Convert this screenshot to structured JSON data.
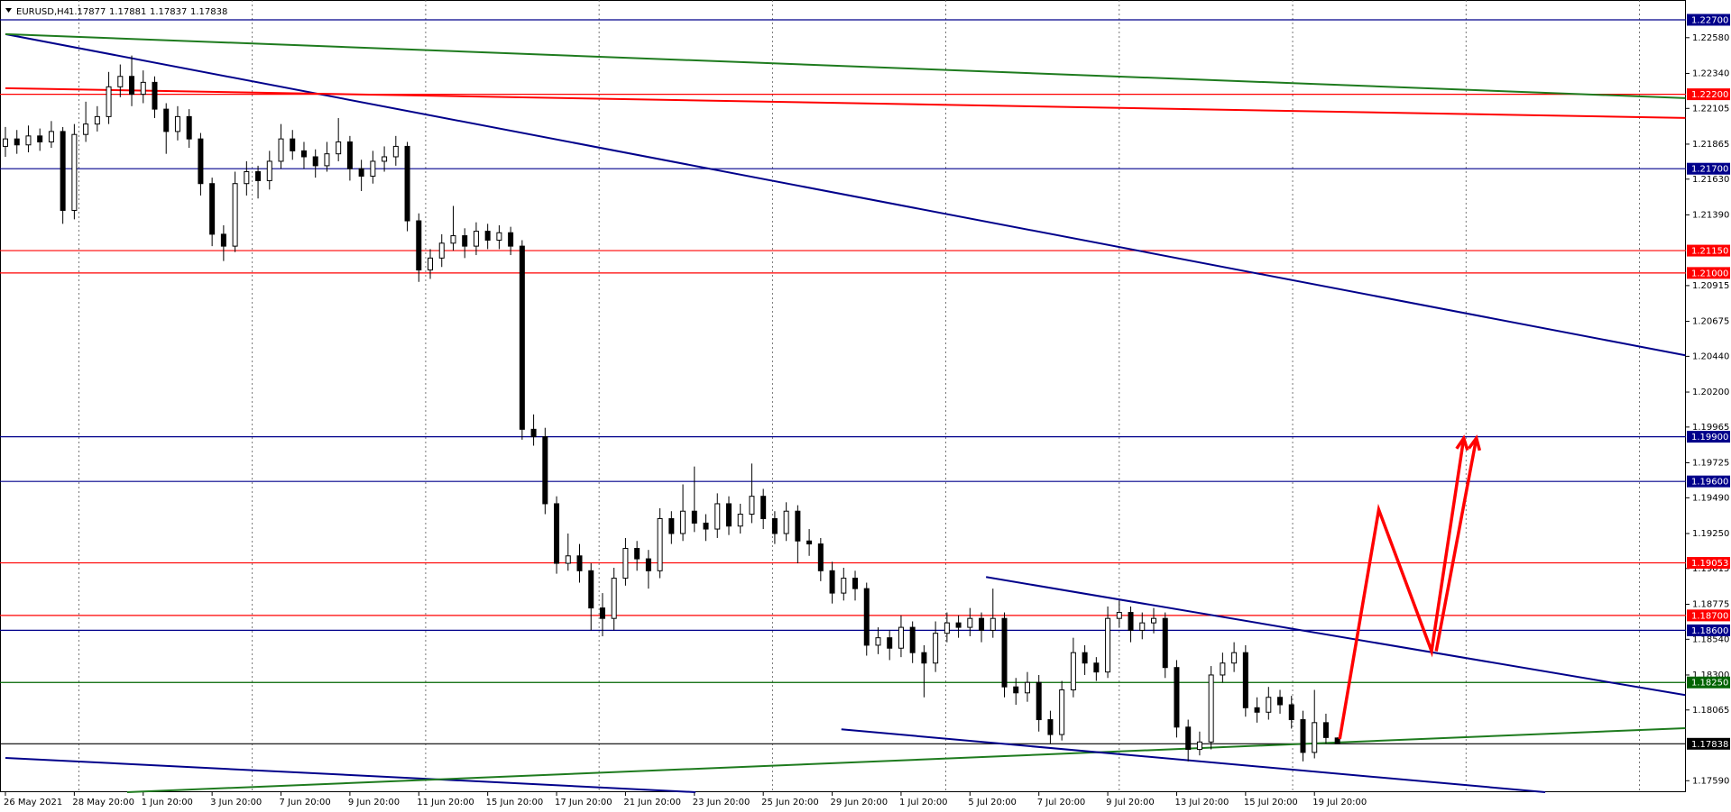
{
  "header": {
    "symbol": "EURUSD,H4",
    "open": "1.17877",
    "high": "1.17881",
    "low": "1.17837",
    "close": "1.17838"
  },
  "chart_data": {
    "type": "candlestick",
    "categories": [
      "26 May 2021",
      null,
      null,
      null,
      null,
      null,
      "28 May 20:00",
      null,
      null,
      null,
      null,
      null,
      "1 Jun 20:00",
      null,
      null,
      null,
      null,
      null,
      "3 Jun 20:00",
      null,
      null,
      null,
      null,
      null,
      "7 Jun 20:00",
      null,
      null,
      null,
      null,
      null,
      "9 Jun 20:00",
      null,
      null,
      null,
      null,
      null,
      "11 Jun 20:00",
      null,
      null,
      null,
      null,
      null,
      "15 Jun 20:00",
      null,
      null,
      null,
      null,
      null,
      "17 Jun 20:00",
      null,
      null,
      null,
      null,
      null,
      "21 Jun 20:00",
      null,
      null,
      null,
      null,
      null,
      "23 Jun 20:00",
      null,
      null,
      null,
      null,
      null,
      "25 Jun 20:00",
      null,
      null,
      null,
      null,
      null,
      "29 Jun 20:00",
      null,
      null,
      null,
      null,
      null,
      "1 Jul 20:00",
      null,
      null,
      null,
      null,
      null,
      "5 Jul 20:00",
      null,
      null,
      null,
      null,
      null,
      "7 Jul 20:00",
      null,
      null,
      null,
      null,
      null,
      "9 Jul 20:00",
      null,
      null,
      null,
      null,
      null,
      "13 Jul 20:00",
      null,
      null,
      null,
      null,
      null,
      "15 Jul 20:00",
      null,
      null,
      null,
      null,
      null,
      "19 Jul 20:00",
      null,
      null
    ],
    "ohlc": [
      [
        1.2185,
        1.2198,
        1.2178,
        1.219
      ],
      [
        1.219,
        1.2196,
        1.218,
        1.2186
      ],
      [
        1.2186,
        1.2199,
        1.2181,
        1.2192
      ],
      [
        1.2192,
        1.2197,
        1.2182,
        1.2188
      ],
      [
        1.2188,
        1.2202,
        1.2184,
        1.2195
      ],
      [
        1.2195,
        1.2198,
        1.2133,
        1.2142
      ],
      [
        1.2142,
        1.22,
        1.2136,
        1.2193
      ],
      [
        1.2193,
        1.2215,
        1.2188,
        1.22
      ],
      [
        1.22,
        1.2212,
        1.2195,
        1.2205
      ],
      [
        1.2205,
        1.2235,
        1.22,
        1.2225
      ],
      [
        1.2225,
        1.224,
        1.2218,
        1.2232
      ],
      [
        1.2232,
        1.2246,
        1.2212,
        1.222
      ],
      [
        1.222,
        1.2236,
        1.2214,
        1.2228
      ],
      [
        1.2228,
        1.2232,
        1.2204,
        1.221
      ],
      [
        1.221,
        1.2214,
        1.218,
        1.2195
      ],
      [
        1.2195,
        1.2212,
        1.2189,
        1.2205
      ],
      [
        1.2205,
        1.221,
        1.2184,
        1.219
      ],
      [
        1.219,
        1.2194,
        1.2152,
        1.216
      ],
      [
        1.216,
        1.2164,
        1.2118,
        1.2126
      ],
      [
        1.2126,
        1.2132,
        1.2108,
        1.2118
      ],
      [
        1.2118,
        1.2168,
        1.2114,
        1.216
      ],
      [
        1.216,
        1.2175,
        1.2152,
        1.2168
      ],
      [
        1.2168,
        1.2172,
        1.215,
        1.2162
      ],
      [
        1.2162,
        1.2182,
        1.2156,
        1.2175
      ],
      [
        1.2175,
        1.22,
        1.217,
        1.219
      ],
      [
        1.219,
        1.2196,
        1.2176,
        1.2182
      ],
      [
        1.2182,
        1.2188,
        1.217,
        1.2178
      ],
      [
        1.2178,
        1.2183,
        1.2164,
        1.2172
      ],
      [
        1.2172,
        1.2188,
        1.2168,
        1.218
      ],
      [
        1.218,
        1.2204,
        1.2175,
        1.2188
      ],
      [
        1.2188,
        1.2192,
        1.2162,
        1.217
      ],
      [
        1.217,
        1.2176,
        1.2155,
        1.2165
      ],
      [
        1.2165,
        1.2182,
        1.216,
        1.2175
      ],
      [
        1.2175,
        1.2185,
        1.2168,
        1.2178
      ],
      [
        1.2178,
        1.2192,
        1.2172,
        1.2185
      ],
      [
        1.2185,
        1.2188,
        1.2128,
        1.2135
      ],
      [
        1.2135,
        1.214,
        1.2094,
        1.2102
      ],
      [
        1.2102,
        1.2116,
        1.2096,
        1.211
      ],
      [
        1.211,
        1.2126,
        1.2104,
        1.212
      ],
      [
        1.212,
        1.2145,
        1.2115,
        1.2125
      ],
      [
        1.2125,
        1.213,
        1.211,
        1.2118
      ],
      [
        1.2118,
        1.2134,
        1.2112,
        1.2128
      ],
      [
        1.2128,
        1.2133,
        1.2116,
        1.2122
      ],
      [
        1.2122,
        1.2132,
        1.2116,
        1.2127
      ],
      [
        1.2127,
        1.2131,
        1.2112,
        1.2118
      ],
      [
        1.2118,
        1.2122,
        1.1988,
        1.1995
      ],
      [
        1.1995,
        1.2005,
        1.1984,
        1.199
      ],
      [
        1.199,
        1.1996,
        1.1938,
        1.1945
      ],
      [
        1.1945,
        1.195,
        1.1898,
        1.1905
      ],
      [
        1.1905,
        1.1925,
        1.19,
        1.191
      ],
      [
        1.191,
        1.1918,
        1.1892,
        1.19
      ],
      [
        1.19,
        1.1905,
        1.186,
        1.1875
      ],
      [
        1.1875,
        1.1885,
        1.1856,
        1.1868
      ],
      [
        1.1868,
        1.1902,
        1.186,
        1.1895
      ],
      [
        1.1895,
        1.1922,
        1.189,
        1.1915
      ],
      [
        1.1915,
        1.192,
        1.19,
        1.1908
      ],
      [
        1.1908,
        1.1914,
        1.1888,
        1.19
      ],
      [
        1.19,
        1.1942,
        1.1895,
        1.1935
      ],
      [
        1.1935,
        1.194,
        1.1918,
        1.1925
      ],
      [
        1.1925,
        1.1958,
        1.192,
        1.194
      ],
      [
        1.194,
        1.197,
        1.1926,
        1.1932
      ],
      [
        1.1932,
        1.1938,
        1.192,
        1.1928
      ],
      [
        1.1928,
        1.1952,
        1.1922,
        1.1945
      ],
      [
        1.1945,
        1.195,
        1.1924,
        1.193
      ],
      [
        1.193,
        1.1945,
        1.1925,
        1.1938
      ],
      [
        1.1938,
        1.1972,
        1.1932,
        1.195
      ],
      [
        1.195,
        1.1955,
        1.1928,
        1.1935
      ],
      [
        1.1935,
        1.194,
        1.1918,
        1.1925
      ],
      [
        1.1925,
        1.1946,
        1.192,
        1.194
      ],
      [
        1.194,
        1.1944,
        1.1905,
        1.192
      ],
      [
        1.192,
        1.1928,
        1.191,
        1.1918
      ],
      [
        1.1918,
        1.1922,
        1.1893,
        1.19
      ],
      [
        1.19,
        1.1906,
        1.1878,
        1.1885
      ],
      [
        1.1885,
        1.1902,
        1.188,
        1.1895
      ],
      [
        1.1895,
        1.19,
        1.188,
        1.1888
      ],
      [
        1.1888,
        1.1892,
        1.1843,
        1.185
      ],
      [
        1.185,
        1.1862,
        1.1844,
        1.1855
      ],
      [
        1.1855,
        1.186,
        1.184,
        1.1848
      ],
      [
        1.1848,
        1.187,
        1.1842,
        1.1862
      ],
      [
        1.1862,
        1.1866,
        1.1838,
        1.1845
      ],
      [
        1.1845,
        1.185,
        1.1815,
        1.1838
      ],
      [
        1.1838,
        1.1866,
        1.1832,
        1.1858
      ],
      [
        1.1858,
        1.1872,
        1.1852,
        1.1865
      ],
      [
        1.1865,
        1.187,
        1.1855,
        1.1862
      ],
      [
        1.1862,
        1.1875,
        1.1856,
        1.1868
      ],
      [
        1.1868,
        1.1872,
        1.1852,
        1.186
      ],
      [
        1.186,
        1.1888,
        1.1855,
        1.1868
      ],
      [
        1.1868,
        1.1872,
        1.1815,
        1.1822
      ],
      [
        1.1822,
        1.1828,
        1.181,
        1.1818
      ],
      [
        1.1818,
        1.1832,
        1.1812,
        1.1825
      ],
      [
        1.1825,
        1.183,
        1.1792,
        1.18
      ],
      [
        1.18,
        1.1806,
        1.1784,
        1.179
      ],
      [
        1.179,
        1.1826,
        1.1786,
        1.182
      ],
      [
        1.182,
        1.1855,
        1.1815,
        1.1845
      ],
      [
        1.1845,
        1.185,
        1.183,
        1.1838
      ],
      [
        1.1838,
        1.1842,
        1.1826,
        1.1832
      ],
      [
        1.1832,
        1.1876,
        1.1828,
        1.1868
      ],
      [
        1.1868,
        1.188,
        1.1862,
        1.1872
      ],
      [
        1.1872,
        1.1876,
        1.1852,
        1.186
      ],
      [
        1.186,
        1.1872,
        1.1854,
        1.1865
      ],
      [
        1.1865,
        1.1875,
        1.1858,
        1.1868
      ],
      [
        1.1868,
        1.1872,
        1.1828,
        1.1835
      ],
      [
        1.1835,
        1.184,
        1.1788,
        1.1795
      ],
      [
        1.1795,
        1.18,
        1.1772,
        1.178
      ],
      [
        1.178,
        1.1792,
        1.1776,
        1.1785
      ],
      [
        1.1785,
        1.1836,
        1.178,
        1.183
      ],
      [
        1.183,
        1.1845,
        1.1825,
        1.1838
      ],
      [
        1.1838,
        1.1852,
        1.1832,
        1.1845
      ],
      [
        1.1845,
        1.185,
        1.1802,
        1.1808
      ],
      [
        1.1808,
        1.1815,
        1.1798,
        1.1805
      ],
      [
        1.1805,
        1.1822,
        1.18,
        1.1815
      ],
      [
        1.1815,
        1.182,
        1.1804,
        1.181
      ],
      [
        1.181,
        1.1816,
        1.1794,
        1.18
      ],
      [
        1.18,
        1.1806,
        1.1772,
        1.1778
      ],
      [
        1.1778,
        1.182,
        1.1774,
        1.1798
      ],
      [
        1.1798,
        1.1804,
        1.1784,
        1.1788
      ],
      [
        1.17877,
        1.17881,
        1.17837,
        1.17838
      ]
    ],
    "ylim": [
      1.17513,
      1.22833
    ],
    "yticks": [
      {
        "value": 1.2258,
        "label": "1.22580"
      },
      {
        "value": 1.2234,
        "label": "1.22340"
      },
      {
        "value": 1.22105,
        "label": "1.22105"
      },
      {
        "value": 1.21865,
        "label": "1.21865"
      },
      {
        "value": 1.2163,
        "label": "1.21630"
      },
      {
        "value": 1.2139,
        "label": "1.21390"
      },
      {
        "value": 1.20915,
        "label": "1.20915"
      },
      {
        "value": 1.20675,
        "label": "1.20675"
      },
      {
        "value": 1.2044,
        "label": "1.20440"
      },
      {
        "value": 1.202,
        "label": "1.20200"
      },
      {
        "value": 1.19965,
        "label": "1.19965"
      },
      {
        "value": 1.19725,
        "label": "1.19725"
      },
      {
        "value": 1.1949,
        "label": "1.19490"
      },
      {
        "value": 1.1925,
        "label": "1.19250"
      },
      {
        "value": 1.19015,
        "label": "1.19015"
      },
      {
        "value": 1.18775,
        "label": "1.18775"
      },
      {
        "value": 1.1854,
        "label": "1.18540"
      },
      {
        "value": 1.183,
        "label": "1.18300"
      },
      {
        "value": 1.18065,
        "label": "1.18065"
      },
      {
        "value": 1.1759,
        "label": "1.17590"
      }
    ],
    "levels": [
      {
        "value": 1.227,
        "label": "1.22700",
        "color": "#00008b"
      },
      {
        "value": 1.222,
        "label": "1.22200",
        "color": "#ff0000"
      },
      {
        "value": 1.217,
        "label": "1.21700",
        "color": "#00008b"
      },
      {
        "value": 1.2115,
        "label": "1.21150",
        "color": "#ff0000"
      },
      {
        "value": 1.21,
        "label": "1.21000",
        "color": "#ff0000"
      },
      {
        "value": 1.199,
        "label": "1.19900",
        "color": "#00008b"
      },
      {
        "value": 1.196,
        "label": "1.19600",
        "color": "#00008b"
      },
      {
        "value": 1.19053,
        "label": "1.19053",
        "color": "#ff0000"
      },
      {
        "value": 1.187,
        "label": "1.18700",
        "color": "#ff0000"
      },
      {
        "value": 1.186,
        "label": "1.18600",
        "color": "#00008b"
      },
      {
        "value": 1.1825,
        "label": "1.18250",
        "color": "#006400"
      },
      {
        "value": 1.17838,
        "label": "1.17838",
        "color": "#000000"
      }
    ],
    "trendlines": [
      {
        "color": "#00008b",
        "points": [
          [
            0,
            1.22604
          ],
          [
            146.3,
            1.20447
          ]
        ]
      },
      {
        "color": "#1e7b1e",
        "points": [
          [
            0,
            1.22604
          ],
          [
            146.3,
            1.22174
          ]
        ]
      },
      {
        "color": "#ff0000",
        "points": [
          [
            0,
            1.22241
          ],
          [
            146.3,
            1.22041
          ]
        ]
      },
      {
        "color": "#00008b",
        "points": [
          [
            0,
            1.17743
          ],
          [
            60.1,
            1.17513
          ]
        ]
      },
      {
        "color": "#1e7b1e",
        "points": [
          [
            10.6,
            1.17513
          ],
          [
            146.3,
            1.17943
          ]
        ]
      },
      {
        "color": "#00008b",
        "points": [
          [
            72.8,
            1.17935
          ],
          [
            134.1,
            1.17513
          ]
        ]
      },
      {
        "color": "#00008b",
        "points": [
          [
            85.4,
            1.18958
          ],
          [
            146.3,
            1.18165
          ]
        ]
      }
    ],
    "arrows": [
      {
        "color": "#ff0000",
        "points": [
          [
            116.2,
            1.1787
          ],
          [
            119.6,
            1.1941
          ],
          [
            124.2,
            1.1846
          ],
          [
            127,
            1.1989
          ]
        ]
      },
      {
        "color": "#ff0000",
        "points": [
          [
            124.6,
            1.1846
          ],
          [
            128.1,
            1.1989
          ]
        ]
      }
    ]
  }
}
